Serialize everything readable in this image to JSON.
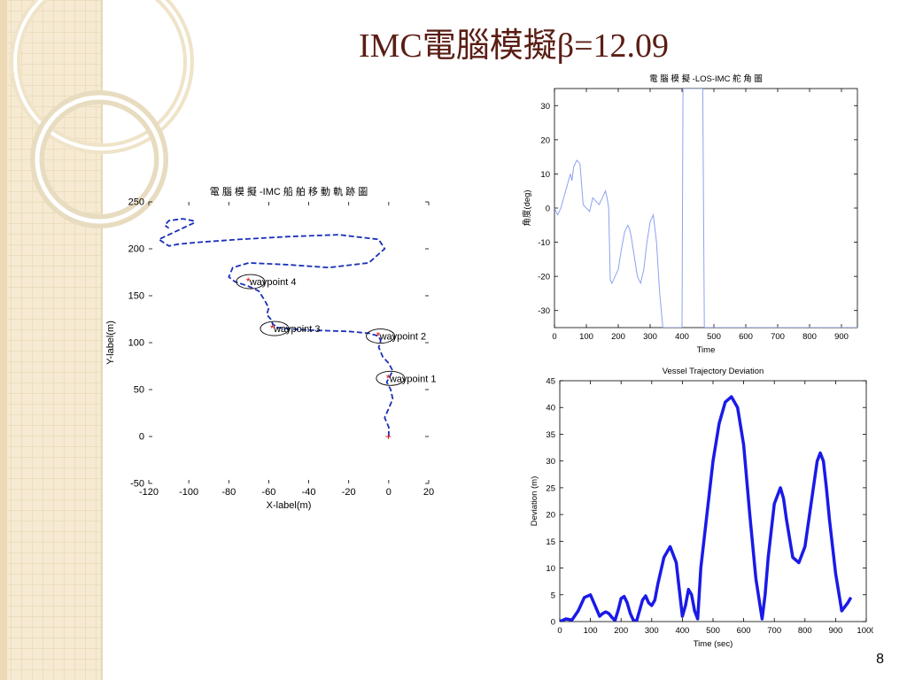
{
  "slide": {
    "title": "IMC電腦模擬β=12.09",
    "page_number": "8",
    "background_colors": {
      "grid": "#f6ead2",
      "grid_line": "#e7d3aa",
      "ring": "#e8dcc0",
      "title": "#5a1e14"
    }
  },
  "chart_data": [
    {
      "type": "line",
      "id": "trajectory",
      "title": "電 腦 模 擬 -IMC 船 舶 移 動 軌 跡 圖",
      "xlabel": "X-label(m)",
      "ylabel": "Y-label(m)",
      "xlim": [
        -120,
        20
      ],
      "ylim": [
        -50,
        250
      ],
      "xticks": [
        -120,
        -100,
        -80,
        -60,
        -40,
        -20,
        0,
        20
      ],
      "yticks": [
        -50,
        0,
        50,
        100,
        150,
        200,
        250
      ],
      "line_color": "#1a2fb8",
      "marker_color": "#e00000",
      "series": [
        {
          "x": [
            0,
            0,
            -2,
            0,
            2,
            1,
            -1,
            0,
            2,
            0,
            -3,
            -5,
            -4,
            -5,
            -10,
            -20,
            -35,
            -45,
            -50,
            -56,
            -58,
            -59,
            -61,
            -60,
            -62,
            -65,
            -70,
            -77,
            -80,
            -78,
            -70,
            -50,
            -30,
            -10,
            -2,
            -5,
            -25,
            -50,
            -75,
            -95,
            -105,
            -110,
            -115,
            -110,
            -105,
            -100,
            -97,
            -98,
            -103,
            -110,
            -112,
            -110
          ],
          "y": [
            0,
            10,
            20,
            30,
            40,
            50,
            58,
            62,
            70,
            78,
            85,
            95,
            102,
            107,
            110,
            112,
            113,
            114,
            115,
            116,
            120,
            125,
            130,
            137,
            145,
            155,
            160,
            165,
            170,
            180,
            185,
            183,
            180,
            185,
            200,
            210,
            215,
            213,
            210,
            207,
            205,
            203,
            210,
            215,
            220,
            225,
            228,
            230,
            232,
            230,
            225,
            222
          ]
        }
      ],
      "waypoints": [
        {
          "name": "waypoint 1",
          "x": 0,
          "y": 62
        },
        {
          "name": "waypoint 2",
          "x": -5,
          "y": 107
        },
        {
          "name": "waypoint 3",
          "x": -58,
          "y": 115
        },
        {
          "name": "waypoint 4",
          "x": -70,
          "y": 165
        }
      ],
      "start_marker": {
        "x": 0,
        "y": 0
      }
    },
    {
      "type": "line",
      "id": "rudder",
      "title": "電 腦 模 擬 -LOS-IMC 舵 角 圖",
      "xlabel": "Time",
      "ylabel": "角度(deg)",
      "xlim": [
        0,
        950
      ],
      "ylim": [
        -35,
        35
      ],
      "xticks": [
        0,
        100,
        200,
        300,
        400,
        500,
        600,
        700,
        800,
        900
      ],
      "yticks": [
        -30,
        -20,
        -10,
        0,
        10,
        20,
        30
      ],
      "line_color": "#8da2f0",
      "series": [
        {
          "x": [
            0,
            10,
            20,
            35,
            50,
            55,
            60,
            70,
            80,
            85,
            90,
            100,
            110,
            115,
            120,
            130,
            140,
            150,
            160,
            165,
            170,
            175,
            180,
            190,
            200,
            210,
            220,
            230,
            235,
            240,
            250,
            260,
            270,
            280,
            290,
            300,
            310,
            320,
            330,
            340,
            350,
            360,
            370,
            380,
            390,
            400,
            403,
            410,
            420,
            430,
            440,
            450,
            460,
            465,
            470,
            480,
            490,
            500,
            510,
            520,
            530,
            540,
            550,
            560,
            570,
            580,
            590,
            600,
            610,
            620,
            630,
            640,
            650,
            660,
            670,
            680,
            690,
            700,
            710,
            720,
            730,
            740,
            750,
            760,
            770,
            780,
            790,
            800,
            810,
            820,
            830,
            840,
            850,
            860,
            870,
            880,
            890,
            900,
            910,
            920,
            930,
            940,
            945,
            950
          ],
          "y": [
            0,
            -2,
            0,
            5,
            10,
            8,
            12,
            14,
            13,
            7,
            1,
            0,
            -1,
            1,
            3,
            2,
            1,
            3,
            5,
            3,
            0,
            -21,
            -22,
            -20,
            -18,
            -12,
            -7,
            -5,
            -6,
            -8,
            -14,
            -20,
            -22,
            -18,
            -10,
            -4,
            -2,
            -10,
            -25,
            -35,
            -35,
            -35,
            -35,
            -35,
            -35,
            -35,
            35,
            35,
            35,
            35,
            35,
            35,
            35,
            35,
            -35,
            -35,
            -35,
            -35,
            -35,
            -35,
            -35,
            -35,
            -35,
            -35,
            -35,
            -35,
            -35,
            -35,
            -35,
            -35,
            -35,
            -35,
            -35,
            -35,
            -35,
            -35,
            -35,
            -35,
            -35,
            -35,
            -35,
            -35,
            -35,
            -35,
            -35,
            -35,
            -35,
            -35,
            -35,
            -35,
            -35,
            -35,
            -35,
            -35,
            -35,
            -35,
            -35,
            -35,
            -35,
            -35,
            -35,
            -35,
            -35,
            -35
          ]
        }
      ]
    },
    {
      "type": "line",
      "id": "deviation",
      "title": "Vessel Trajectory Deviation",
      "xlabel": "Time (sec)",
      "ylabel": "Deviation (m)",
      "xlim": [
        0,
        1000
      ],
      "ylim": [
        0,
        45
      ],
      "xticks": [
        0,
        100,
        200,
        300,
        400,
        500,
        600,
        700,
        800,
        900,
        1000
      ],
      "yticks": [
        0,
        5,
        10,
        15,
        20,
        25,
        30,
        35,
        40,
        45
      ],
      "line_color": "#1a1ae8",
      "series": [
        {
          "x": [
            0,
            20,
            40,
            60,
            80,
            100,
            115,
            130,
            140,
            150,
            160,
            170,
            180,
            190,
            200,
            210,
            220,
            230,
            240,
            250,
            260,
            270,
            280,
            290,
            300,
            310,
            320,
            340,
            360,
            380,
            390,
            400,
            410,
            420,
            430,
            440,
            450,
            460,
            480,
            500,
            520,
            540,
            560,
            580,
            600,
            620,
            640,
            660,
            670,
            680,
            700,
            720,
            730,
            740,
            760,
            780,
            800,
            820,
            840,
            850,
            860,
            870,
            880,
            900,
            920,
            940,
            950
          ],
          "y": [
            0,
            0.5,
            0.3,
            2,
            4.5,
            5,
            3,
            1,
            1.5,
            1.8,
            1.5,
            0.8,
            0.2,
            2,
            4.3,
            4.7,
            3.5,
            1.5,
            0.3,
            0,
            2,
            4,
            4.8,
            3.5,
            3,
            4,
            7,
            12,
            14,
            11,
            6,
            1,
            3,
            6,
            5,
            2,
            0.5,
            10,
            20,
            30,
            37,
            41,
            42,
            40,
            33,
            20,
            8,
            0.5,
            5,
            12,
            22,
            25,
            23,
            19,
            12,
            11,
            14,
            22,
            30,
            31.5,
            30,
            25,
            19,
            9,
            2,
            3.5,
            4.5
          ]
        }
      ]
    }
  ]
}
